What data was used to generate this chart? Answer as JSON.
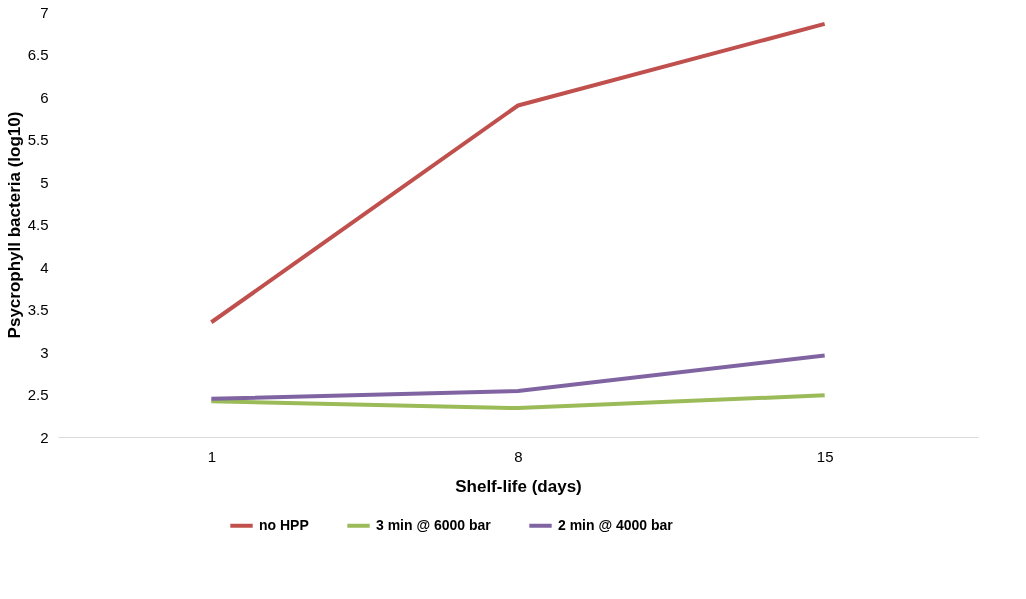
{
  "chart_data": {
    "type": "line",
    "xlabel": "Shelf-life (days)",
    "ylabel": "Psycrophyll bacteria (log10)",
    "categories": [
      "1",
      "8",
      "15"
    ],
    "series": [
      {
        "name": "no HPP",
        "color": "#c0504d",
        "values": [
          3.35,
          5.9,
          6.86
        ]
      },
      {
        "name": "3 min @ 6000 bar",
        "color": "#9bbb59",
        "values": [
          2.42,
          2.34,
          2.49
        ]
      },
      {
        "name": "2 min @ 4000 bar",
        "color": "#8064a2",
        "values": [
          2.45,
          2.54,
          2.96
        ]
      }
    ],
    "ylim": [
      2,
      7
    ],
    "yticks": [
      2,
      2.5,
      3,
      3.5,
      4,
      4.5,
      5,
      5.5,
      6,
      6.5,
      7
    ],
    "grid": false,
    "legend": "bottom",
    "marker": "none",
    "line_style": "solid"
  }
}
